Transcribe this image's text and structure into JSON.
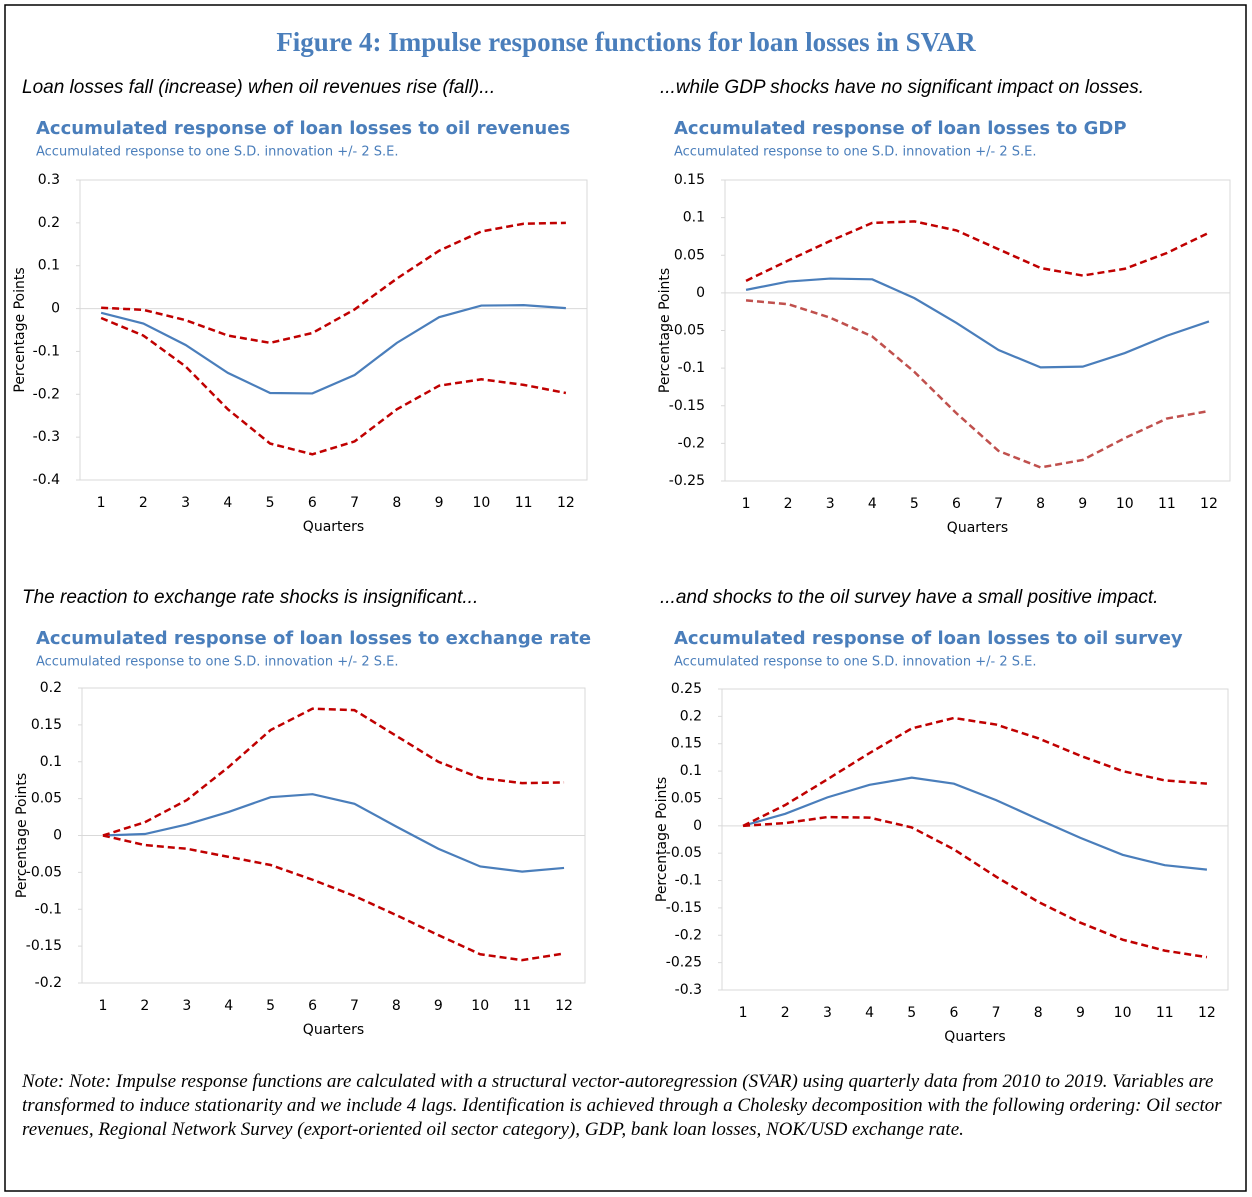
{
  "title": "Figure 4: Impulse response functions for loan losses in SVAR",
  "note": "Note: Note: Impulse response functions are calculated with a structural vector-autoregression (SVAR) using quarterly data from 2010 to 2019. Variables are transformed to induce stationarity and we include 4 lags. Identification is achieved through a Cholesky decomposition with the following ordering: Oil sector revenues, Regional Network Survey (export-oriented oil sector category), GDP, bank loan losses, NOK/USD exchange rate.",
  "chart_data": [
    {
      "type": "line",
      "caption": "Loan losses fall (increase) when oil revenues rise (fall)...",
      "title": "Accumulated response of loan losses to oil revenues",
      "subtitle": "Accumulated response to one S.D. innovation +/- 2 S.E.",
      "xlabel": "Quarters",
      "ylabel": "Percentage Points",
      "categories": [
        "1",
        "2",
        "3",
        "4",
        "5",
        "6",
        "7",
        "8",
        "9",
        "10",
        "11",
        "12"
      ],
      "ylim": [
        -0.4,
        0.3
      ],
      "yticks": [
        -0.4,
        -0.3,
        -0.2,
        -0.1,
        0,
        0.1,
        0.2,
        0.3
      ],
      "series": [
        {
          "color": "#4a7ebb",
          "dashed": false,
          "values": [
            -0.01,
            -0.035,
            -0.085,
            -0.15,
            -0.197,
            -0.198,
            -0.155,
            -0.08,
            -0.02,
            0.007,
            0.008,
            0.001
          ]
        },
        {
          "color": "#c00000",
          "dashed": true,
          "values": [
            0.002,
            -0.003,
            -0.027,
            -0.063,
            -0.08,
            -0.057,
            -0.002,
            0.07,
            0.135,
            0.18,
            0.198,
            0.2
          ]
        },
        {
          "color": "#c00000",
          "dashed": true,
          "values": [
            -0.022,
            -0.063,
            -0.135,
            -0.235,
            -0.315,
            -0.34,
            -0.31,
            -0.235,
            -0.18,
            -0.165,
            -0.178,
            -0.197
          ]
        }
      ]
    },
    {
      "type": "line",
      "caption": "...while GDP shocks have no significant impact on losses.",
      "title": "Accumulated response of loan losses to GDP",
      "subtitle": "Accumulated response to one S.D. innovation +/- 2 S.E.",
      "xlabel": "Quarters",
      "ylabel": "Percentage Points",
      "categories": [
        "1",
        "2",
        "3",
        "4",
        "5",
        "6",
        "7",
        "8",
        "9",
        "10",
        "11",
        "12"
      ],
      "ylim": [
        -0.25,
        0.15
      ],
      "yticks": [
        -0.25,
        -0.2,
        -0.15,
        -0.1,
        -0.05,
        0,
        0.05,
        0.1,
        0.15
      ],
      "series": [
        {
          "color": "#4a7ebb",
          "dashed": false,
          "values": [
            0.004,
            0.015,
            0.019,
            0.018,
            -0.007,
            -0.04,
            -0.076,
            -0.099,
            -0.098,
            -0.08,
            -0.057,
            -0.038
          ]
        },
        {
          "color": "#c00000",
          "dashed": true,
          "values": [
            0.016,
            0.043,
            0.069,
            0.093,
            0.095,
            0.083,
            0.058,
            0.033,
            0.023,
            0.032,
            0.053,
            0.08
          ]
        },
        {
          "color": "#c0504d",
          "dashed": true,
          "values": [
            -0.01,
            -0.015,
            -0.033,
            -0.058,
            -0.105,
            -0.16,
            -0.21,
            -0.232,
            -0.222,
            -0.193,
            -0.167,
            -0.157
          ]
        }
      ]
    },
    {
      "type": "line",
      "caption": "The reaction to exchange rate shocks is insignificant...",
      "title": "Accumulated response of loan losses to exchange rate",
      "subtitle": "Accumulated response to one S.D. innovation +/- 2 S.E.",
      "xlabel": "Quarters",
      "ylabel": "Percentage Points",
      "categories": [
        "1",
        "2",
        "3",
        "4",
        "5",
        "6",
        "7",
        "8",
        "9",
        "10",
        "11",
        "12"
      ],
      "ylim": [
        -0.2,
        0.2
      ],
      "yticks": [
        -0.2,
        -0.15,
        -0.1,
        -0.05,
        0,
        0.05,
        0.1,
        0.15,
        0.2
      ],
      "series": [
        {
          "color": "#4a7ebb",
          "dashed": false,
          "values": [
            0,
            0.002,
            0.015,
            0.032,
            0.052,
            0.056,
            0.043,
            0.012,
            -0.018,
            -0.042,
            -0.049,
            -0.044
          ]
        },
        {
          "color": "#c00000",
          "dashed": true,
          "values": [
            0,
            0.018,
            0.048,
            0.093,
            0.143,
            0.172,
            0.17,
            0.135,
            0.1,
            0.078,
            0.071,
            0.072
          ]
        },
        {
          "color": "#c00000",
          "dashed": true,
          "values": [
            0,
            -0.013,
            -0.018,
            -0.029,
            -0.04,
            -0.06,
            -0.082,
            -0.108,
            -0.135,
            -0.161,
            -0.169,
            -0.16
          ]
        }
      ]
    },
    {
      "type": "line",
      "caption": "...and shocks to the oil survey have a small positive impact.",
      "title": "Accumulated response of loan losses to oil survey",
      "subtitle": "Accumulated response to one S.D. innovation +/- 2 S.E.",
      "xlabel": "Quarters",
      "ylabel": "Percentage Points",
      "categories": [
        "1",
        "2",
        "3",
        "4",
        "5",
        "6",
        "7",
        "8",
        "9",
        "10",
        "11",
        "12"
      ],
      "ylim": [
        -0.3,
        0.25
      ],
      "yticks": [
        -0.3,
        -0.25,
        -0.2,
        -0.15,
        -0.1,
        -0.05,
        0,
        0.05,
        0.1,
        0.15,
        0.2,
        0.25
      ],
      "series": [
        {
          "color": "#4a7ebb",
          "dashed": false,
          "values": [
            0,
            0.022,
            0.052,
            0.075,
            0.088,
            0.077,
            0.047,
            0.012,
            -0.022,
            -0.053,
            -0.072,
            -0.08
          ]
        },
        {
          "color": "#c00000",
          "dashed": true,
          "values": [
            0,
            0.038,
            0.085,
            0.133,
            0.178,
            0.197,
            0.185,
            0.16,
            0.128,
            0.1,
            0.083,
            0.077
          ]
        },
        {
          "color": "#c00000",
          "dashed": true,
          "values": [
            0,
            0.005,
            0.016,
            0.015,
            -0.003,
            -0.043,
            -0.093,
            -0.139,
            -0.177,
            -0.208,
            -0.228,
            -0.24
          ]
        }
      ]
    }
  ]
}
